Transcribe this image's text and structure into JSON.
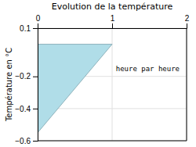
{
  "chart_data": {
    "type": "area",
    "title": "Evolution de la température",
    "y_label": "Température en °C",
    "x": [
      0,
      0,
      1,
      0
    ],
    "values": [
      0,
      -0.55,
      0,
      0
    ],
    "color": "#b0dde8",
    "xlim": [
      0,
      2
    ],
    "ylim": [
      -0.6,
      0.1
    ],
    "xticks": [
      0,
      1,
      2
    ],
    "yticks": [
      0.1,
      {
        "value": -0.2,
        "label": "−0.2"
      },
      {
        "value": -0.4,
        "label": "−0.4"
      },
      {
        "value": -0.6,
        "label": "−0.6"
      }
    ],
    "grid": true,
    "annotations": [
      {
        "text": "heure par heure",
        "x": 1.05,
        "y": -0.13
      }
    ]
  }
}
